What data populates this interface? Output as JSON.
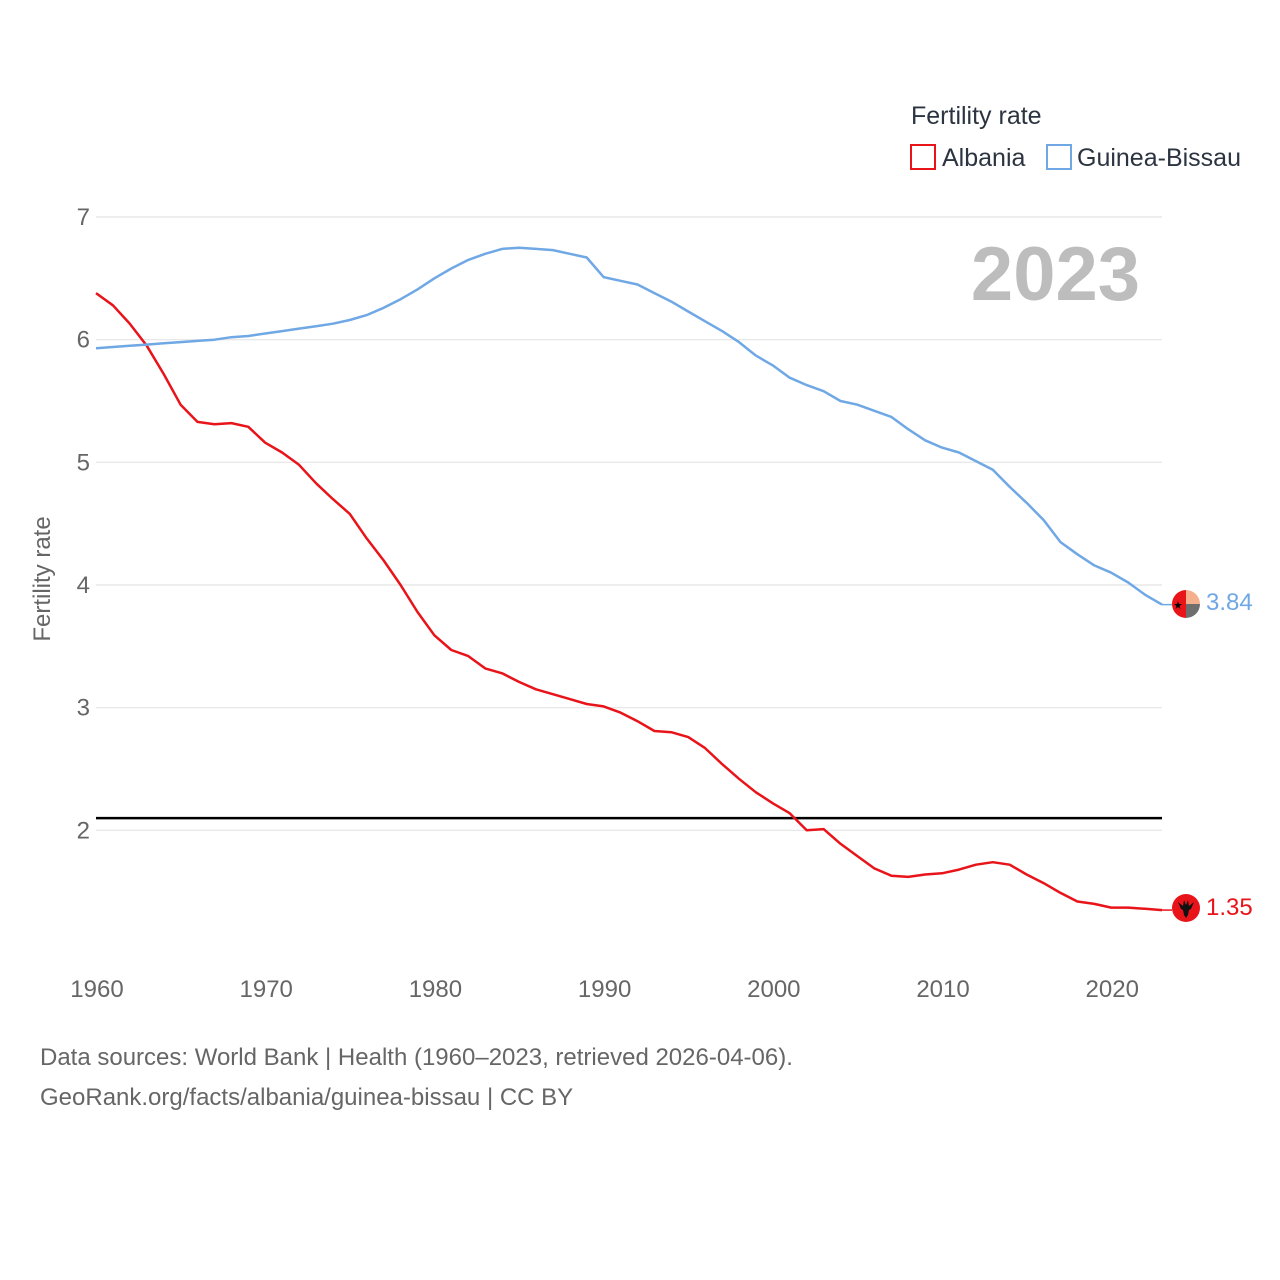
{
  "chart_data": {
    "type": "line",
    "legend_title": "Fertility rate",
    "ylabel": "Fertility rate",
    "year_label": "2023",
    "xlim": [
      1960,
      2023
    ],
    "ylim": [
      1,
      7
    ],
    "x_ticks": [
      1960,
      1970,
      1980,
      1990,
      2000,
      2010,
      2020
    ],
    "y_ticks": [
      2,
      3,
      4,
      5,
      6,
      7
    ],
    "reference_line": 2.1,
    "x": [
      1960,
      1961,
      1962,
      1963,
      1964,
      1965,
      1966,
      1967,
      1968,
      1969,
      1970,
      1971,
      1972,
      1973,
      1974,
      1975,
      1976,
      1977,
      1978,
      1979,
      1980,
      1981,
      1982,
      1983,
      1984,
      1985,
      1986,
      1987,
      1988,
      1989,
      1990,
      1991,
      1992,
      1993,
      1994,
      1995,
      1996,
      1997,
      1998,
      1999,
      2000,
      2001,
      2002,
      2003,
      2004,
      2005,
      2006,
      2007,
      2008,
      2009,
      2010,
      2011,
      2012,
      2013,
      2014,
      2015,
      2016,
      2017,
      2018,
      2019,
      2020,
      2021,
      2022,
      2023
    ],
    "series": [
      {
        "name": "Albania",
        "color": "#e8141a",
        "end_label": "1.35",
        "values": [
          6.38,
          6.28,
          6.13,
          5.95,
          5.72,
          5.47,
          5.33,
          5.31,
          5.32,
          5.29,
          5.16,
          5.08,
          4.98,
          4.83,
          4.7,
          4.58,
          4.38,
          4.2,
          4.0,
          3.78,
          3.59,
          3.47,
          3.42,
          3.32,
          3.28,
          3.21,
          3.15,
          3.11,
          3.07,
          3.03,
          3.01,
          2.96,
          2.89,
          2.81,
          2.8,
          2.76,
          2.67,
          2.54,
          2.42,
          2.31,
          2.22,
          2.14,
          2.0,
          2.01,
          1.89,
          1.79,
          1.69,
          1.63,
          1.62,
          1.64,
          1.65,
          1.68,
          1.72,
          1.74,
          1.72,
          1.64,
          1.57,
          1.49,
          1.42,
          1.4,
          1.37,
          1.37,
          1.36,
          1.35
        ]
      },
      {
        "name": "Guinea-Bissau",
        "color": "#6fa8e4",
        "end_label": "3.84",
        "values": [
          5.93,
          5.94,
          5.95,
          5.96,
          5.97,
          5.98,
          5.99,
          6.0,
          6.02,
          6.03,
          6.05,
          6.07,
          6.09,
          6.11,
          6.13,
          6.16,
          6.2,
          6.26,
          6.33,
          6.41,
          6.5,
          6.58,
          6.65,
          6.7,
          6.74,
          6.75,
          6.74,
          6.73,
          6.7,
          6.67,
          6.51,
          6.48,
          6.45,
          6.38,
          6.31,
          6.23,
          6.15,
          6.07,
          5.98,
          5.87,
          5.79,
          5.69,
          5.63,
          5.58,
          5.5,
          5.47,
          5.42,
          5.37,
          5.27,
          5.18,
          5.12,
          5.08,
          5.01,
          4.94,
          4.8,
          4.67,
          4.53,
          4.35,
          4.25,
          4.16,
          4.1,
          4.02,
          3.92,
          3.84
        ]
      }
    ]
  },
  "footer": {
    "line1": "Data sources: World Bank | Health (1960–2023, retrieved 2026-04-06).",
    "line2": "GeoRank.org/facts/albania/guinea-bissau | CC BY"
  }
}
